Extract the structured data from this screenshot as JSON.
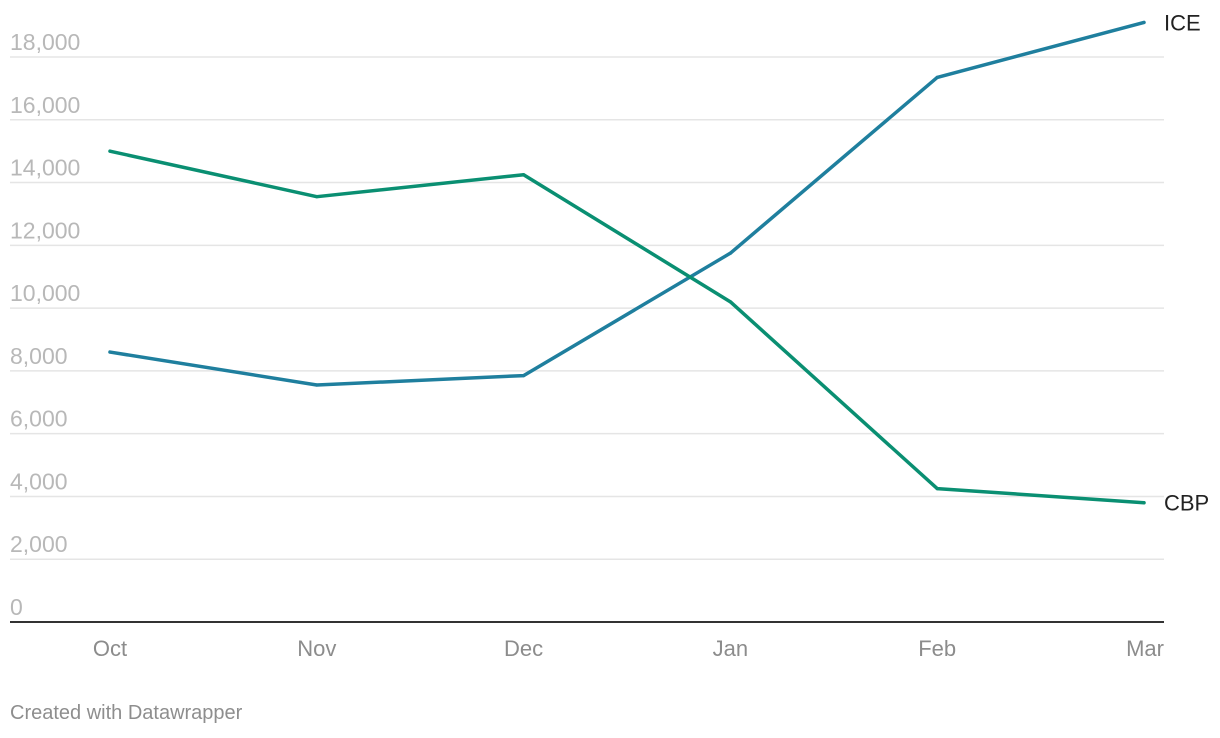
{
  "credit": "Created with Datawrapper",
  "chart_data": {
    "type": "line",
    "title": "",
    "xlabel": "",
    "ylabel": "",
    "categories": [
      "Oct",
      "Nov",
      "Dec",
      "Jan",
      "Feb",
      "Mar"
    ],
    "ylim": [
      0,
      19000
    ],
    "yticks": [
      0,
      2000,
      4000,
      6000,
      8000,
      10000,
      12000,
      14000,
      16000,
      18000
    ],
    "ytick_labels": [
      "0",
      "2,000",
      "4,000",
      "6,000",
      "8,000",
      "10,000",
      "12,000",
      "14,000",
      "16,000",
      "18,000"
    ],
    "grid": true,
    "legend": "direct labels at line ends",
    "series": [
      {
        "name": "ICE",
        "color": "#1f7f9e",
        "values": [
          8600,
          7550,
          7850,
          11750,
          17350,
          19100
        ]
      },
      {
        "name": "CBP",
        "color": "#0a8f72",
        "values": [
          15000,
          13550,
          14250,
          10200,
          4250,
          3800
        ]
      }
    ]
  }
}
